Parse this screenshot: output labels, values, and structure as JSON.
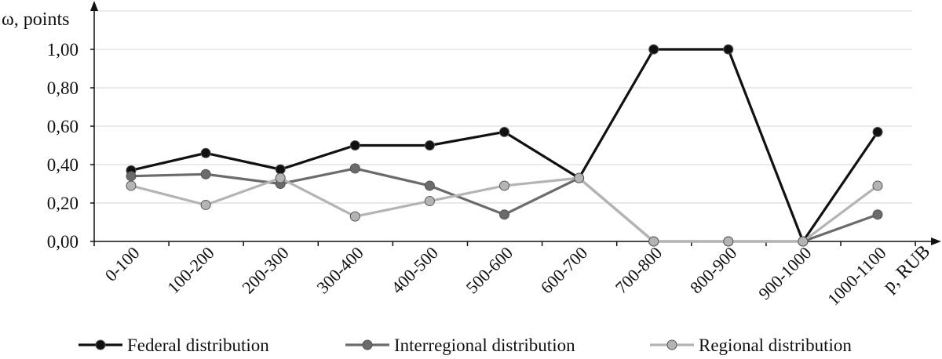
{
  "chart_data": {
    "type": "line",
    "title": "",
    "ylabel": "ω, points",
    "xlabel": "p, RUB",
    "ylim": [
      0,
      1.2
    ],
    "yticks": [
      0,
      0.2,
      0.4,
      0.6,
      0.8,
      1.0
    ],
    "ytick_labels": [
      "0,00",
      "0,20",
      "0,40",
      "0,60",
      "0,80",
      "1,00"
    ],
    "categories": [
      "0-100",
      "100-200",
      "200-300",
      "300-400",
      "400-500",
      "500-600",
      "600-700",
      "700-800",
      "800-900",
      "900-1000",
      "1000-1100"
    ],
    "grid": true,
    "legend_position": "bottom",
    "series": [
      {
        "name": "Federal distribution",
        "color": "#111111",
        "values": [
          0.37,
          0.46,
          0.375,
          0.5,
          0.5,
          0.57,
          0.33,
          1.0,
          1.0,
          0.0,
          0.57
        ]
      },
      {
        "name": "Interregional distribution",
        "color": "#6b6b6b",
        "values": [
          0.34,
          0.35,
          0.3,
          0.38,
          0.29,
          0.14,
          0.33,
          0.0,
          0.0,
          0.0,
          0.14
        ]
      },
      {
        "name": "Regional distribution",
        "color": "#b4b4b4",
        "values": [
          0.29,
          0.19,
          0.33,
          0.13,
          0.21,
          0.29,
          0.33,
          0.0,
          0.0,
          0.0,
          0.29
        ]
      }
    ]
  }
}
